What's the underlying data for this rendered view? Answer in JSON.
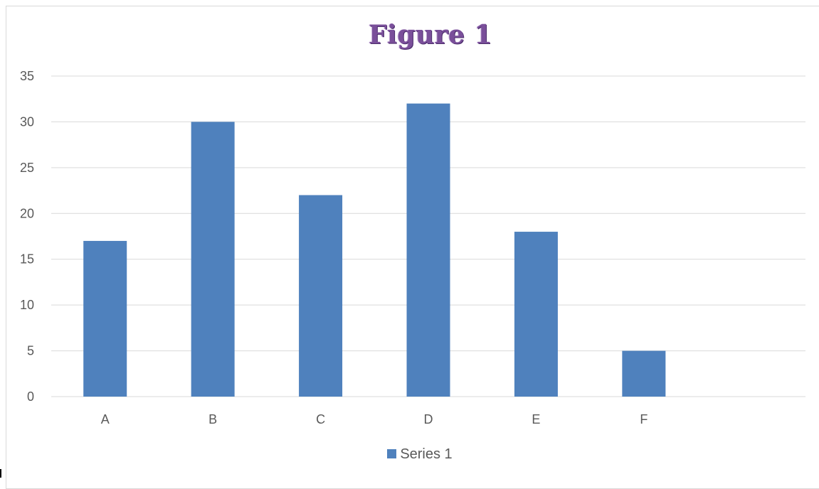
{
  "chart_data": {
    "type": "bar",
    "title": "Figure 1",
    "categories": [
      "A",
      "B",
      "C",
      "D",
      "E",
      "F",
      ""
    ],
    "series": [
      {
        "name": "Series 1",
        "color": "#4f81bd",
        "values": [
          17,
          30,
          22,
          32,
          18,
          5,
          null
        ]
      }
    ],
    "ylim": [
      0,
      35
    ],
    "yticks": [
      "0",
      "5",
      "10",
      "15",
      "20",
      "25",
      "30",
      "35"
    ],
    "grid": true,
    "gridline_color": "#d9d9d9",
    "legend_position": "bottom"
  }
}
